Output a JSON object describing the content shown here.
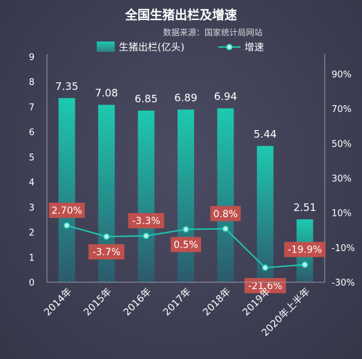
{
  "title": "全国生猪出栏及增速",
  "source": "数据来源：国家统计局网站",
  "colors": {
    "background": "#3f4054",
    "bar_top": "#1ec9b0",
    "bar_bottom": "#2c5a6c",
    "line": "#1fc7b2",
    "label_box": "#c0504d",
    "text": "#ffffff"
  },
  "legend": {
    "bar_label": "生猪出栏(亿头)",
    "line_label": "增速"
  },
  "chart_data": {
    "type": "bar",
    "categories": [
      "2014年",
      "2015年",
      "2016年",
      "2017年",
      "2018年",
      "2019年",
      "2020年上半年"
    ],
    "series": [
      {
        "name": "生猪出栏(亿头)",
        "type": "bar",
        "axis": "left",
        "values": [
          7.35,
          7.08,
          6.85,
          6.89,
          6.94,
          5.44,
          2.51
        ]
      },
      {
        "name": "增速",
        "type": "line",
        "axis": "right",
        "values": [
          2.7,
          -3.7,
          -3.3,
          0.5,
          0.8,
          -21.6,
          -19.9
        ]
      }
    ],
    "bar_data_labels": [
      "7.35",
      "7.08",
      "6.85",
      "6.89",
      "6.94",
      "5.44",
      "2.51"
    ],
    "line_data_labels": [
      "2.70%",
      "-3.7%",
      "-3.3%",
      "0.5%",
      "0.8%",
      "-21.6%",
      "-19.9%"
    ],
    "y_left": {
      "ylim": [
        0,
        9
      ],
      "ticks": [
        "0",
        "1",
        "2",
        "3",
        "4",
        "5",
        "6",
        "7",
        "8",
        "9"
      ]
    },
    "y_right": {
      "ylim": [
        -30,
        100
      ],
      "ticks": [
        "-30%",
        "-10%",
        "10%",
        "30%",
        "50%",
        "70%",
        "90%"
      ],
      "tick_values": [
        -30,
        -10,
        10,
        30,
        50,
        70,
        90
      ]
    },
    "legend_position": "top",
    "grid": false
  }
}
